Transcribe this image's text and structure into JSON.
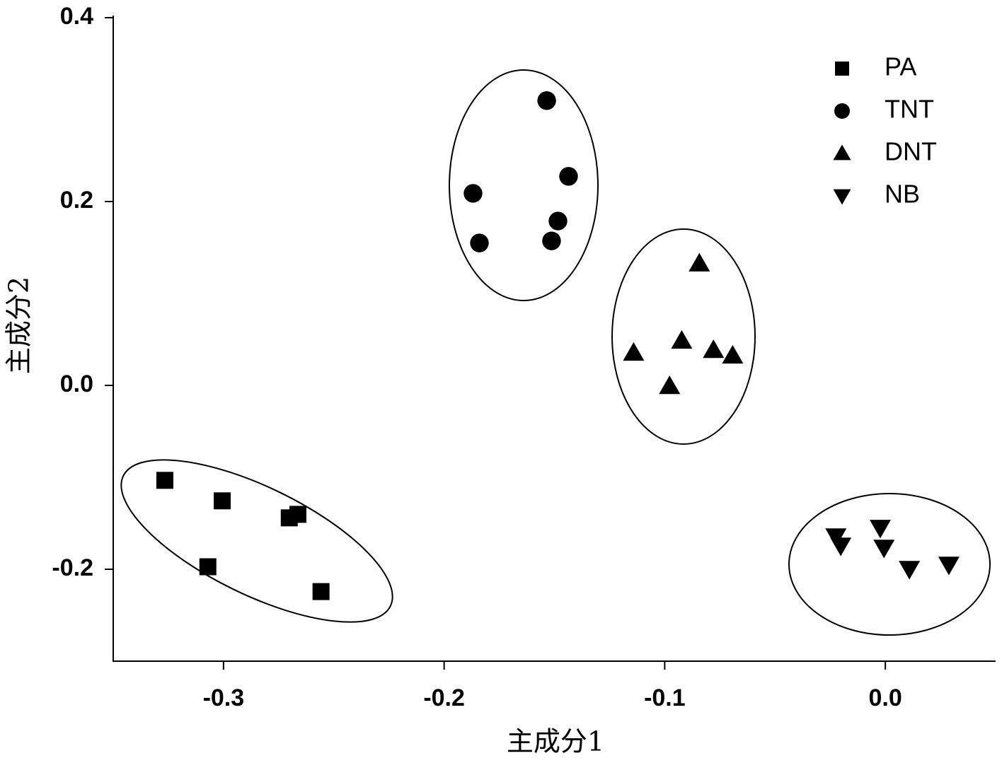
{
  "chart_data": {
    "type": "scatter",
    "x_label": "主成分1",
    "y_label": "主成分2",
    "xlim": [
      -0.35,
      0.05
    ],
    "ylim": [
      -0.3,
      0.4
    ],
    "xticks": [
      -0.3,
      -0.2,
      -0.1,
      {
        "value": 0,
        "label": "0.0"
      }
    ],
    "yticks": [
      {
        "value": -0.2,
        "label": "-0.2"
      },
      {
        "value": 0,
        "label": "0.0"
      },
      0.2,
      0.4
    ],
    "legend": "top-right",
    "series": [
      {
        "name": "PA",
        "color": "#000000",
        "marker": "square",
        "x": [
          -0.3266,
          -0.3006,
          -0.2702,
          -0.2663,
          -0.3071,
          -0.2558
        ],
        "values": [
          -0.1033,
          -0.1256,
          -0.1441,
          -0.1403,
          -0.1973,
          -0.2243
        ]
      },
      {
        "name": "TNT",
        "color": "#000000",
        "marker": "circle",
        "x": [
          -0.1535,
          -0.1869,
          -0.1436,
          -0.1484,
          -0.184,
          -0.1513
        ],
        "values": [
          0.3098,
          0.2089,
          0.2274,
          0.1788,
          0.1549,
          0.1572
        ]
      },
      {
        "name": "DNT",
        "color": "#000000",
        "marker": "triangle-up",
        "x": [
          -0.0843,
          -0.1141,
          -0.0923,
          -0.0779,
          -0.0692,
          -0.0978
        ],
        "values": [
          0.1326,
          0.0355,
          0.0486,
          0.0385,
          0.0324,
          -0.0008
        ]
      },
      {
        "name": "NB",
        "color": "#000000",
        "marker": "triangle-down",
        "x": [
          -0.0224,
          -0.0202,
          -0.0023,
          -0.0006,
          0.0109,
          0.0288
        ],
        "values": [
          -0.1642,
          -0.1742,
          -0.1549,
          -0.1765,
          -0.1996,
          -0.195
        ]
      }
    ]
  }
}
